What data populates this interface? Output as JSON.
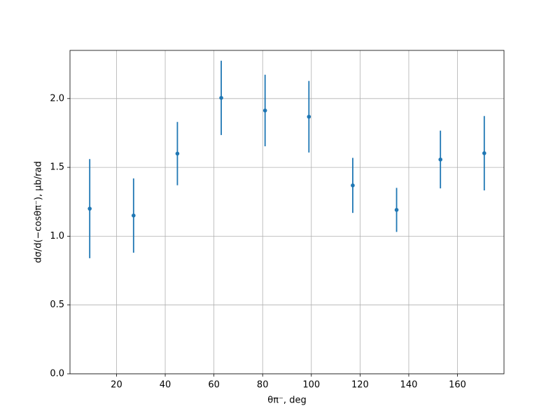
{
  "chart_data": {
    "type": "errorbar",
    "xlabel": "θπ⁻, deg",
    "ylabel": "dσ/d(−cosθπ⁻), μb/rad",
    "x": [
      9,
      27,
      45,
      63,
      81,
      99,
      117,
      135,
      153,
      171
    ],
    "series": [
      {
        "color": "#1f77b4",
        "values": [
          1.2,
          1.15,
          1.6,
          2.005,
          1.913,
          1.868,
          1.369,
          1.191,
          1.557,
          1.603
        ],
        "errors": [
          0.36,
          0.27,
          0.23,
          0.27,
          0.26,
          0.26,
          0.2,
          0.16,
          0.21,
          0.27
        ]
      }
    ],
    "xlim": [
      0.9,
      179.1
    ],
    "ylim": [
      0,
      2.35
    ],
    "xticks": [
      20,
      40,
      60,
      80,
      100,
      120,
      140,
      160
    ],
    "yticks": [
      {
        "value": 0,
        "label": "0.0"
      },
      {
        "value": 0.5,
        "label": "0.5"
      },
      {
        "value": 1,
        "label": "1.0"
      },
      {
        "value": 1.5,
        "label": "1.5"
      },
      {
        "value": 2,
        "label": "2.0"
      }
    ],
    "grid": true
  }
}
